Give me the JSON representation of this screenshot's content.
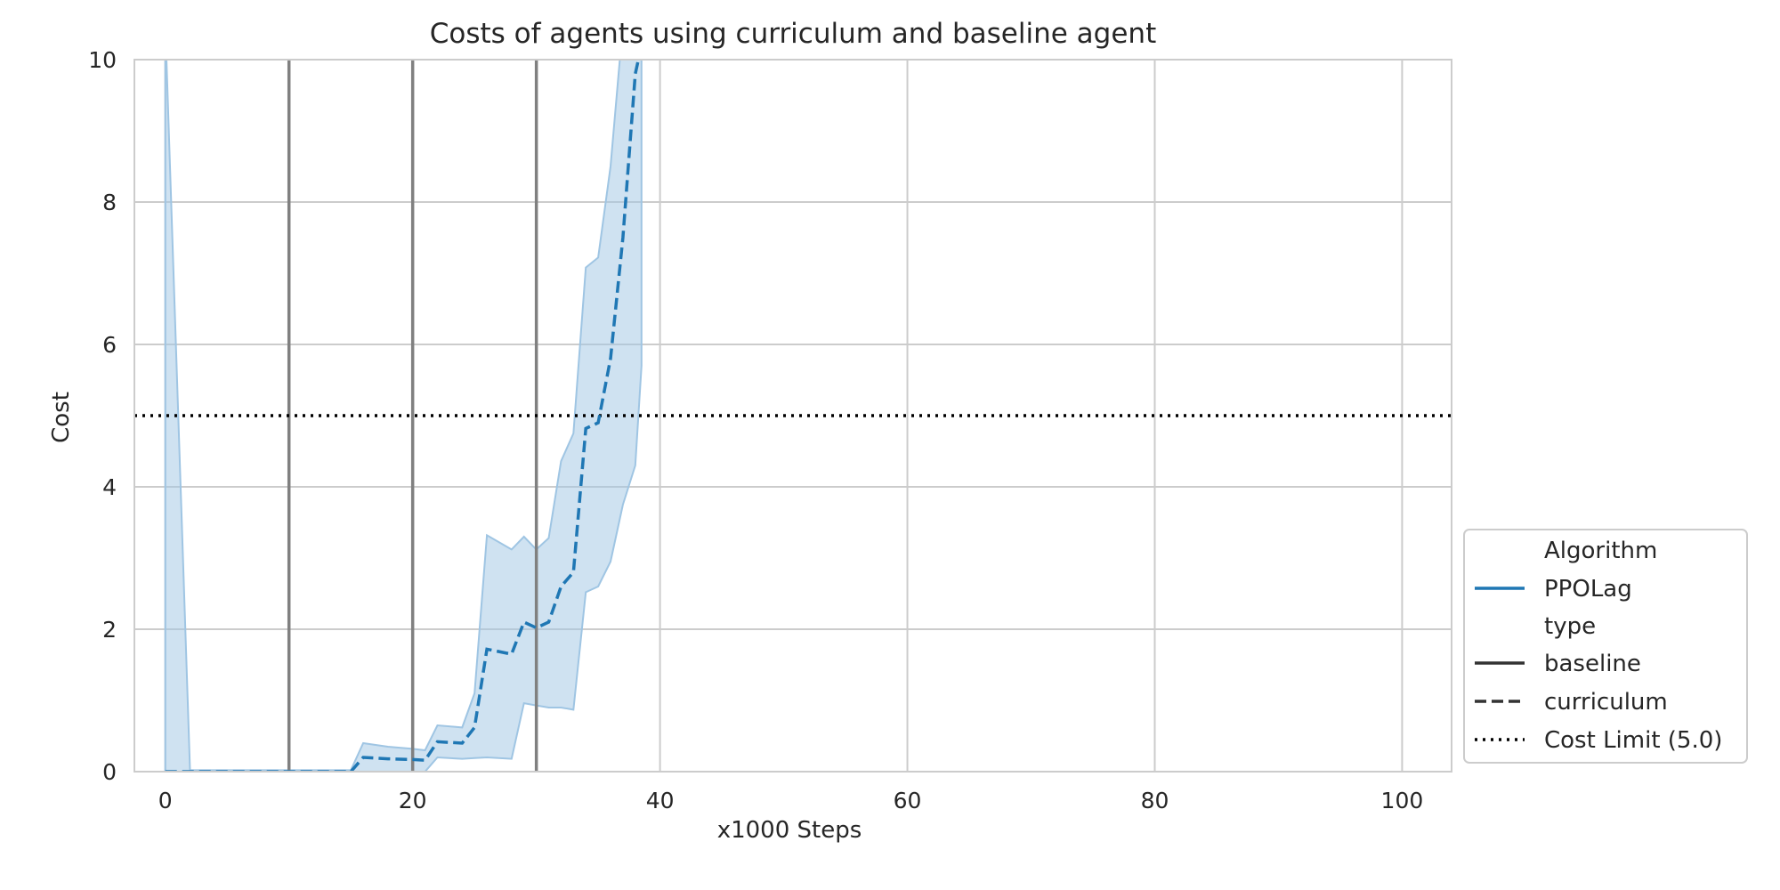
{
  "chart_data": {
    "type": "line",
    "title": "Costs of agents using curriculum and baseline agent",
    "xlabel": "x1000 Steps",
    "ylabel": "Cost",
    "xlim": [
      -2.5,
      104
    ],
    "ylim": [
      0,
      10
    ],
    "xticks": [
      0,
      20,
      40,
      60,
      80,
      100
    ],
    "yticks": [
      0,
      2,
      4,
      6,
      8,
      10
    ],
    "grid": true,
    "legend_position": "lower-right, outside plot",
    "colors": {
      "ppolag": "#1f77b4",
      "band": "#9fc5e3",
      "phase_line": "#808080",
      "limit": "#000000",
      "grid": "#cccccc"
    },
    "phase_lines_x": [
      10,
      20,
      30
    ],
    "cost_limit": 5.0,
    "series": [
      {
        "name": "PPOLag",
        "type_label": "curriculum",
        "style": "dashed",
        "x": [
          0,
          2,
          4,
          6,
          8,
          10,
          12,
          14,
          15,
          16,
          18,
          20,
          21,
          22,
          24,
          25,
          26,
          28,
          29,
          30,
          31,
          32,
          33,
          34,
          35,
          36,
          37,
          38,
          38.5
        ],
        "y": [
          0,
          0,
          0,
          0,
          0,
          0,
          0,
          0,
          0,
          0.2,
          0.18,
          0.17,
          0.16,
          0.42,
          0.4,
          0.62,
          1.72,
          1.65,
          2.1,
          2.02,
          2.1,
          2.6,
          2.8,
          4.82,
          4.9,
          5.8,
          7.5,
          9.8,
          10.2
        ],
        "band_upper": [
          10.5,
          0.02,
          0.02,
          0.02,
          0.02,
          0.02,
          0.02,
          0.02,
          0.02,
          0.4,
          0.35,
          0.32,
          0.3,
          0.65,
          0.62,
          1.1,
          3.32,
          3.12,
          3.3,
          3.12,
          3.28,
          4.36,
          4.75,
          7.08,
          7.22,
          8.5,
          10.5,
          10.5,
          10.5
        ],
        "band_lower": [
          0,
          0,
          0,
          0,
          0,
          0,
          0,
          0,
          0,
          0.0,
          0.0,
          0.0,
          0.0,
          0.2,
          0.18,
          0.19,
          0.2,
          0.18,
          0.96,
          0.93,
          0.9,
          0.9,
          0.87,
          2.52,
          2.6,
          2.95,
          3.75,
          4.3,
          5.7
        ]
      }
    ],
    "legend": {
      "title_algorithm": "Algorithm",
      "algorithm": "PPOLag",
      "title_type": "type",
      "type_baseline": "baseline",
      "type_curriculum": "curriculum",
      "limit_label": "Cost Limit (5.0)"
    }
  }
}
